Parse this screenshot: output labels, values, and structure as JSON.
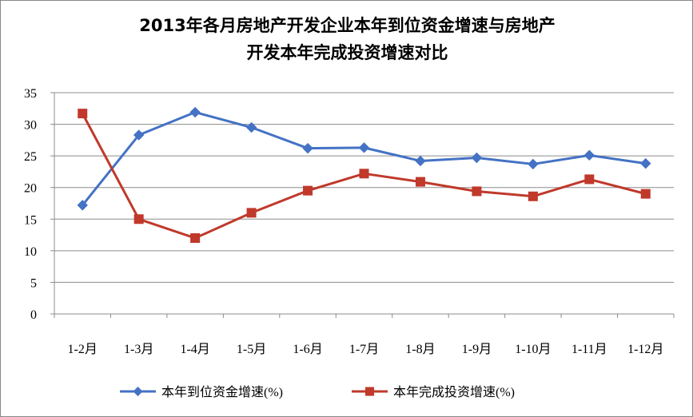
{
  "chart_data": {
    "type": "line",
    "title_line1": "2013年各月房地产开发企业本年到位资金增速与房地产",
    "title_line2": "开发本年完成投资增速对比",
    "categories": [
      "1-2月",
      "1-3月",
      "1-4月",
      "1-5月",
      "1-6月",
      "1-7月",
      "1-8月",
      "1-9月",
      "1-10月",
      "1-11月",
      "1-12月"
    ],
    "yticks": [
      "0",
      "5",
      "10",
      "15",
      "20",
      "25",
      "30",
      "35"
    ],
    "ylim": [
      0,
      35
    ],
    "series": [
      {
        "name": "本年到位资金增速(%)",
        "color": "#4472C4",
        "marker": "diamond",
        "values": [
          17.2,
          28.3,
          31.9,
          29.5,
          26.2,
          26.3,
          24.2,
          24.7,
          23.7,
          25.1,
          23.8
        ]
      },
      {
        "name": "本年完成投资增速(%)",
        "color": "#C0392B",
        "marker": "square",
        "values": [
          31.7,
          15.0,
          12.0,
          16.0,
          19.5,
          22.2,
          20.9,
          19.4,
          18.6,
          21.3,
          19.0
        ]
      }
    ],
    "legend_position": "bottom",
    "grid": "horizontal"
  }
}
